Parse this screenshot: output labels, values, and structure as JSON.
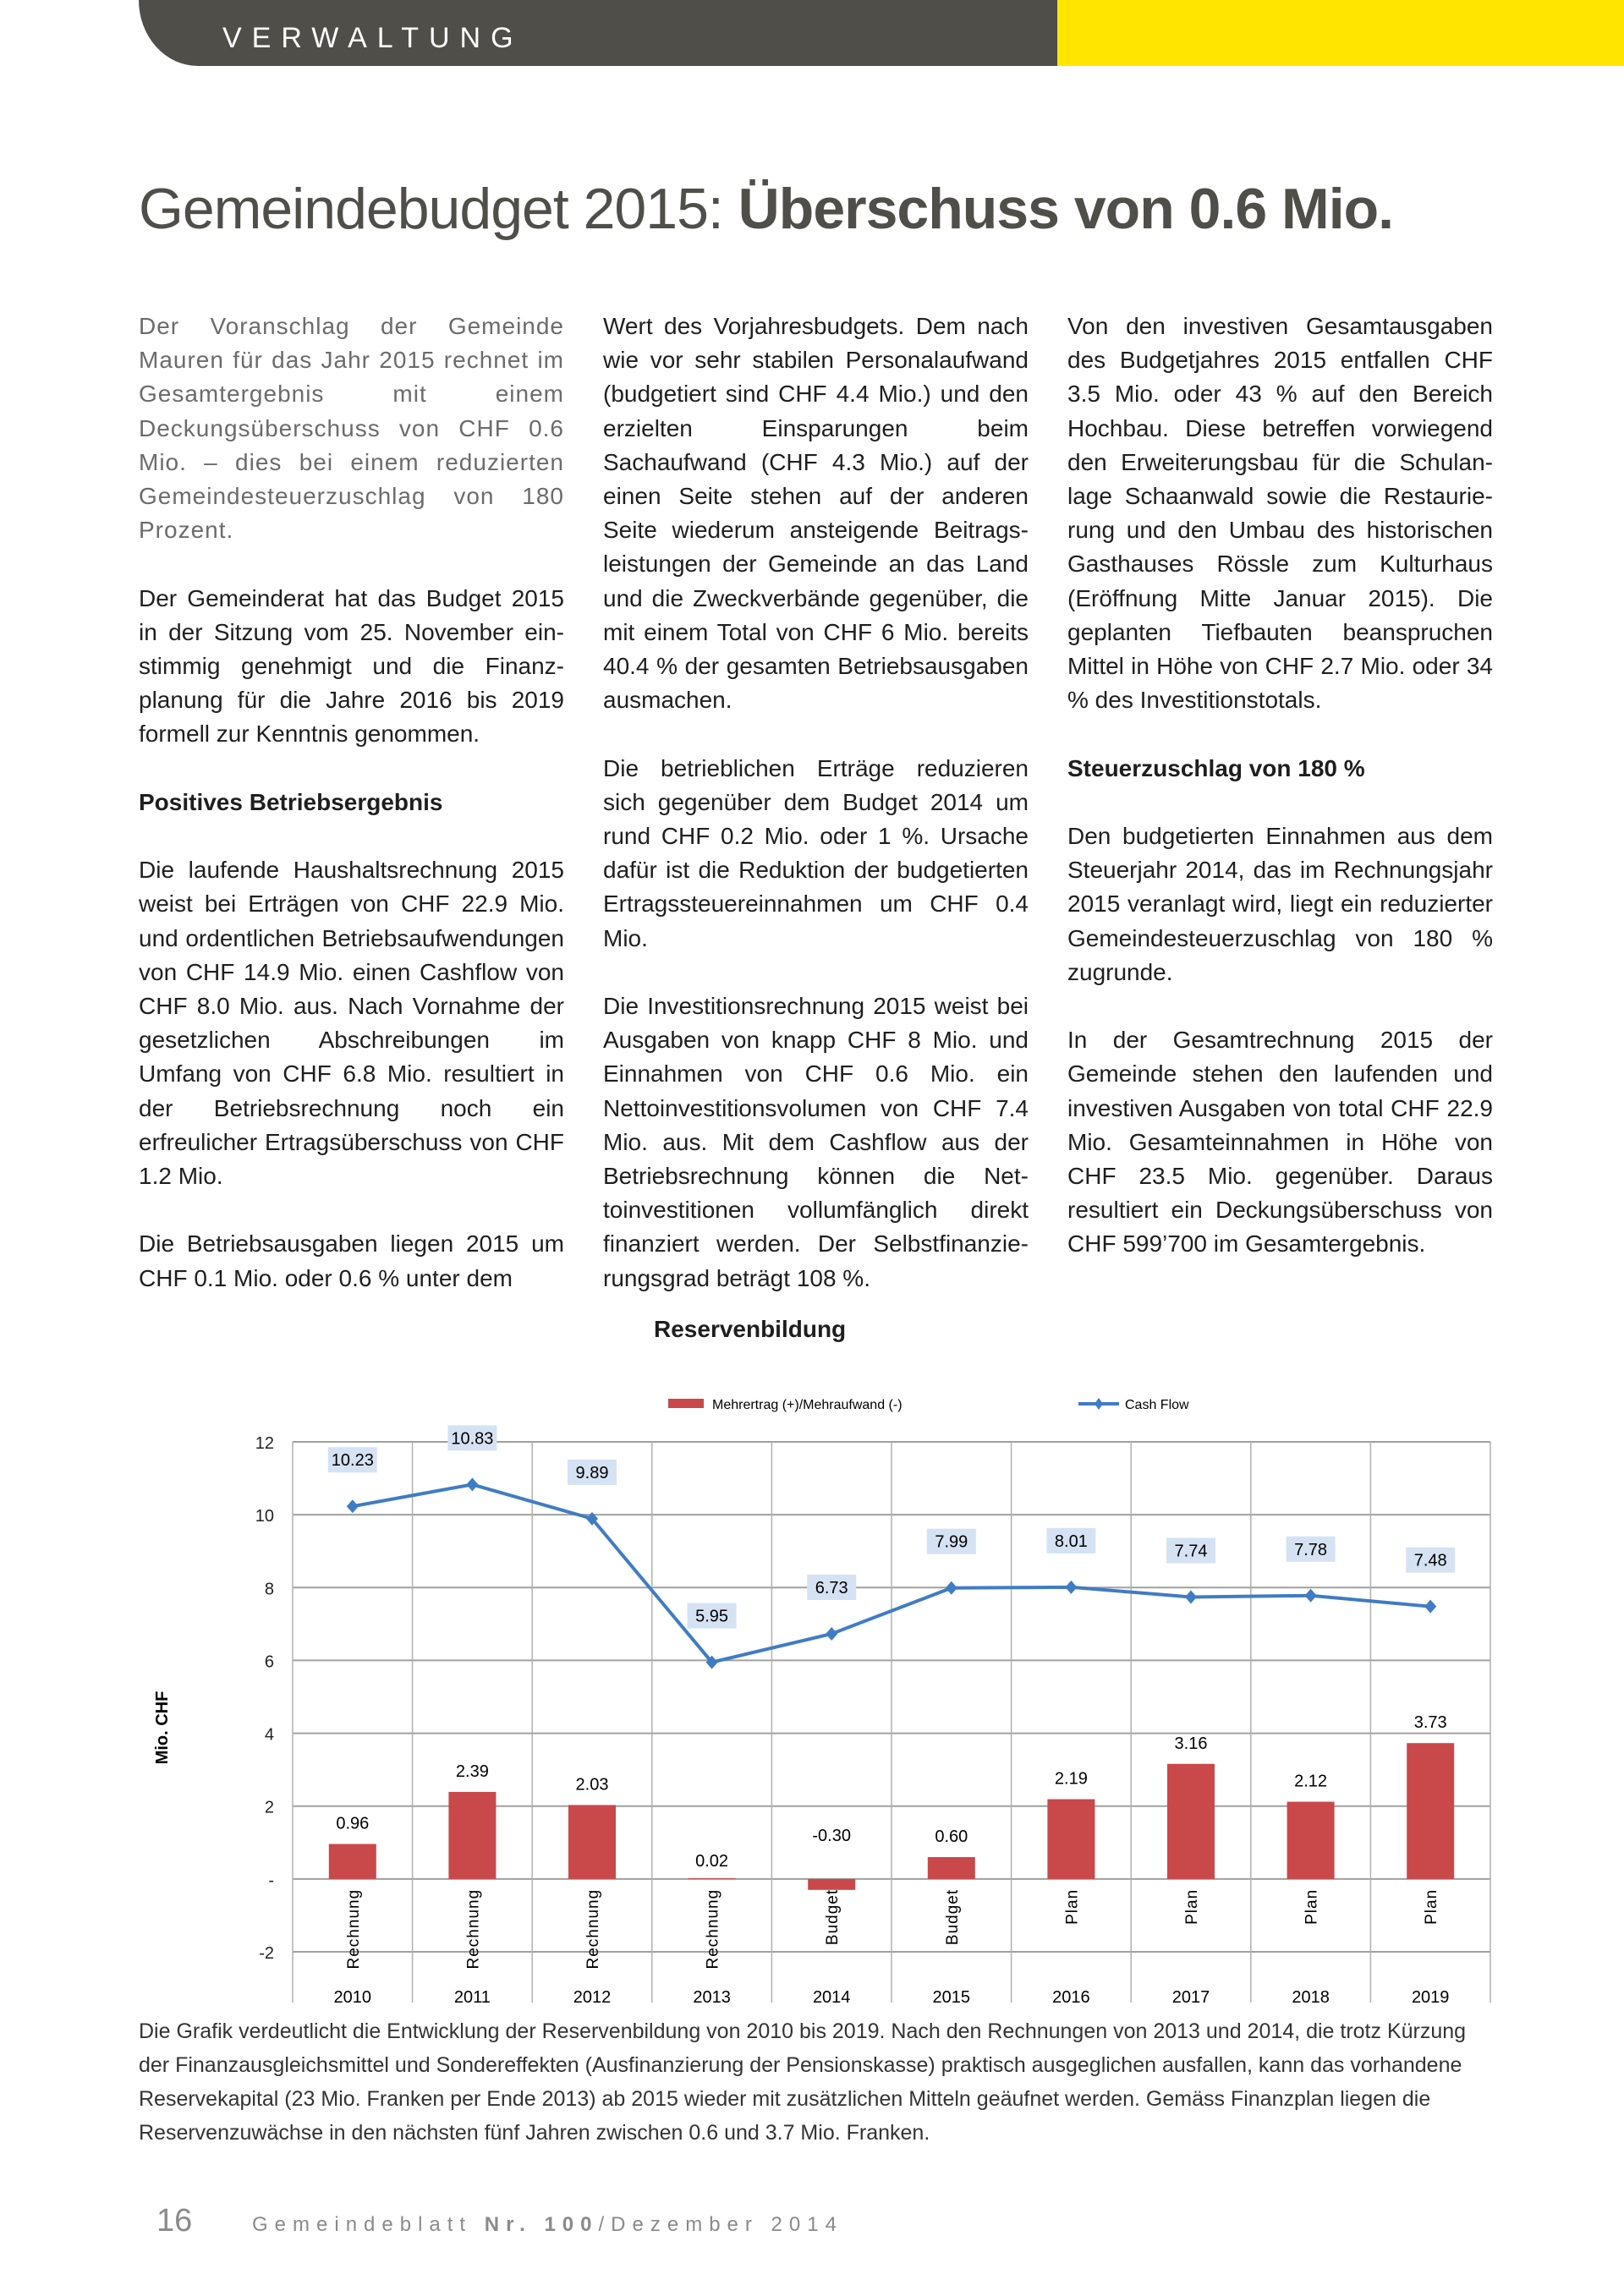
{
  "header": {
    "section": "VERWALTUNG",
    "colors": {
      "bar": "#4f4e48",
      "accent": "#ffe500"
    }
  },
  "title": {
    "light": "Gemeindebudget 2015: ",
    "bold": "Überschuss von 0.6 Mio."
  },
  "columns": {
    "c1": {
      "p1": "Der Voranschlag der Gemeinde Mauren für das Jahr 2015 rechnet im Gesamtergebnis mit einem Deckungsüberschuss von CHF 0.6 Mio. – dies bei einem reduzierten Gemeindesteuer­zuschlag von 180 Prozent.",
      "p2": "Der Gemeinderat hat das Budget 2015 in der Sitzung vom 25. November ein­stimmig genehmigt und die Finanz­planung für die Jahre 2016 bis 2019 formell zur Kenntnis genommen.",
      "h1": "Positives Betriebsergebnis",
      "p3": "Die laufende Haushaltsrechnung 2015 weist bei Erträgen von CHF 22.9 Mio. und ordentlichen Betriebsaufwendun­gen von CHF 14.9 Mio. einen Cash­flow von CHF 8.0 Mio. aus. Nach Vornahme der gesetzlichen Abschrei­bungen im Umfang von CHF 6.8 Mio. resultiert in der Betriebsrechnung noch ein erfreulicher Ertragsüberschuss von CHF 1.2 Mio.",
      "p4": "Die Betriebsausgaben liegen 2015 um CHF 0.1 Mio. oder 0.6 % unter dem"
    },
    "c2": {
      "p1": "Wert des Vorjahresbudgets. Dem nach wie vor sehr stabilen Personalauf­wand (budgetiert sind CHF 4.4 Mio.) und den erzielten Einsparungen beim Sachaufwand (CHF 4.3 Mio.) auf der einen Seite stehen auf der anderen Seite wiederum ansteigende Beitrags­leistungen der Gemeinde an das Land und die Zweckverbände gegenüber, die mit einem Total von CHF 6 Mio. bereits 40.4 % der gesamten Betriebs­ausgaben ausmachen.",
      "p2": "Die betrieblichen Erträge reduzieren sich gegenüber dem Budget 2014 um rund CHF 0.2 Mio. oder 1 %. Ursa­che dafür ist die Reduktion der bud­getierten Ertragssteuereinnahmen um CHF 0.4 Mio.",
      "p3": "Die Investitionsrechnung 2015 weist bei Ausgaben von knapp CHF 8 Mio. und Einnahmen von CHF 0.6 Mio. ein Nettoinvestitionsvolumen von CHF 7.4 Mio. aus. Mit dem Cashflow aus der Betriebsrechnung können die Net­toinvestitionen vollumfänglich direkt finanziert werden. Der Selbstfinanzie­rungsgrad beträgt 108 %."
    },
    "c3": {
      "p1": "Von den investiven Gesamtausgaben des Budgetjahres 2015 entfallen CHF 3.5 Mio. oder 43 % auf den Bereich Hochbau. Diese betreffen vorwiegend den Erweiterungsbau für die Schulan­lage Schaanwald sowie die Restaurie­rung und den Umbau des historischen Gasthauses Rössle zum Kulturhaus (Eröffnung Mitte Januar 2015). Die geplanten Tiefbauten beanspruchen Mittel in Höhe von CHF 2.7 Mio. oder 34 % des Investitionstotals.",
      "h1": "Steuerzuschlag von 180 %",
      "p2": "Den budgetierten Einnahmen aus dem Steuerjahr 2014, das im Rechnungs­jahr 2015 veranlagt wird, liegt ein reduzierter Gemeindesteuerzuschlag von 180 % zugrunde.",
      "p3": "In der Gesamtrechnung 2015 der Gemeinde stehen den laufenden und investiven Ausgaben von total CHF 22.9 Mio. Gesamteinnahmen in Höhe von CHF 23.5 Mio. gegenüber. Dar­aus resultiert ein Deckungsüberschuss von CHF 599’700 im Gesamtergebnis."
    }
  },
  "chart_data": {
    "type": "bar+line",
    "title": "Reservenbildung",
    "ylabel": "Mio. CHF",
    "ylim": [
      -2,
      12
    ],
    "yticks": [
      "-2",
      "-",
      "2",
      "4",
      "6",
      "8",
      "10",
      "12"
    ],
    "ytick_values": [
      -2,
      0,
      2,
      4,
      6,
      8,
      10,
      12
    ],
    "grid": true,
    "legend_position": "top",
    "categories": [
      "2010",
      "2011",
      "2012",
      "2013",
      "2014",
      "2015",
      "2016",
      "2017",
      "2018",
      "2019"
    ],
    "category_types": [
      "Rechnung",
      "Rechnung",
      "Rechnung",
      "Rechnung",
      "Budget",
      "Budget",
      "Plan",
      "Plan",
      "Plan",
      "Plan"
    ],
    "series": [
      {
        "name": "Mehrertrag (+)/Mehraufwand (-)",
        "kind": "bar",
        "color": "#c9484a",
        "values": [
          0.96,
          2.39,
          2.03,
          0.02,
          -0.3,
          0.6,
          2.19,
          3.16,
          2.12,
          3.73
        ],
        "labels": [
          "0.96",
          "2.39",
          "2.03",
          "0.02",
          "-0.30",
          "0.60",
          "2.19",
          "3.16",
          "2.12",
          "3.73"
        ]
      },
      {
        "name": "Cash Flow",
        "kind": "line",
        "color": "#3f7cc4",
        "values": [
          10.23,
          10.83,
          9.89,
          5.95,
          6.73,
          7.99,
          8.01,
          7.74,
          7.78,
          7.48
        ],
        "labels": [
          "10.23",
          "10.83",
          "9.89",
          "5.95",
          "6.73",
          "7.99",
          "8.01",
          "7.74",
          "7.78",
          "7.48"
        ]
      }
    ]
  },
  "caption": "Die Grafik verdeutlicht die Entwicklung der Reservenbildung von 2010 bis 2019. Nach den Rechnungen von 2013 und 2014, die trotz Kürzung der Finanzausgleichsmittel und Sondereffekten (Ausfinanzierung der Pensionskasse) praktisch ausgeglichen ausfallen, kann das vorhandene Reservekapital (23 Mio. Franken per Ende 2013) ab 2015 wieder mit zusätzlichen Mitteln geäufnet werden. Gemäss Finanzplan liegen die Reservenzuwächse in den nächsten fünf Jahren zwischen 0.6 und 3.7 Mio. Franken.",
  "footer": {
    "page": "16",
    "magazine": "Gemeindeblatt",
    "nr": "Nr. 100",
    "date": "/Dezember 2014"
  }
}
